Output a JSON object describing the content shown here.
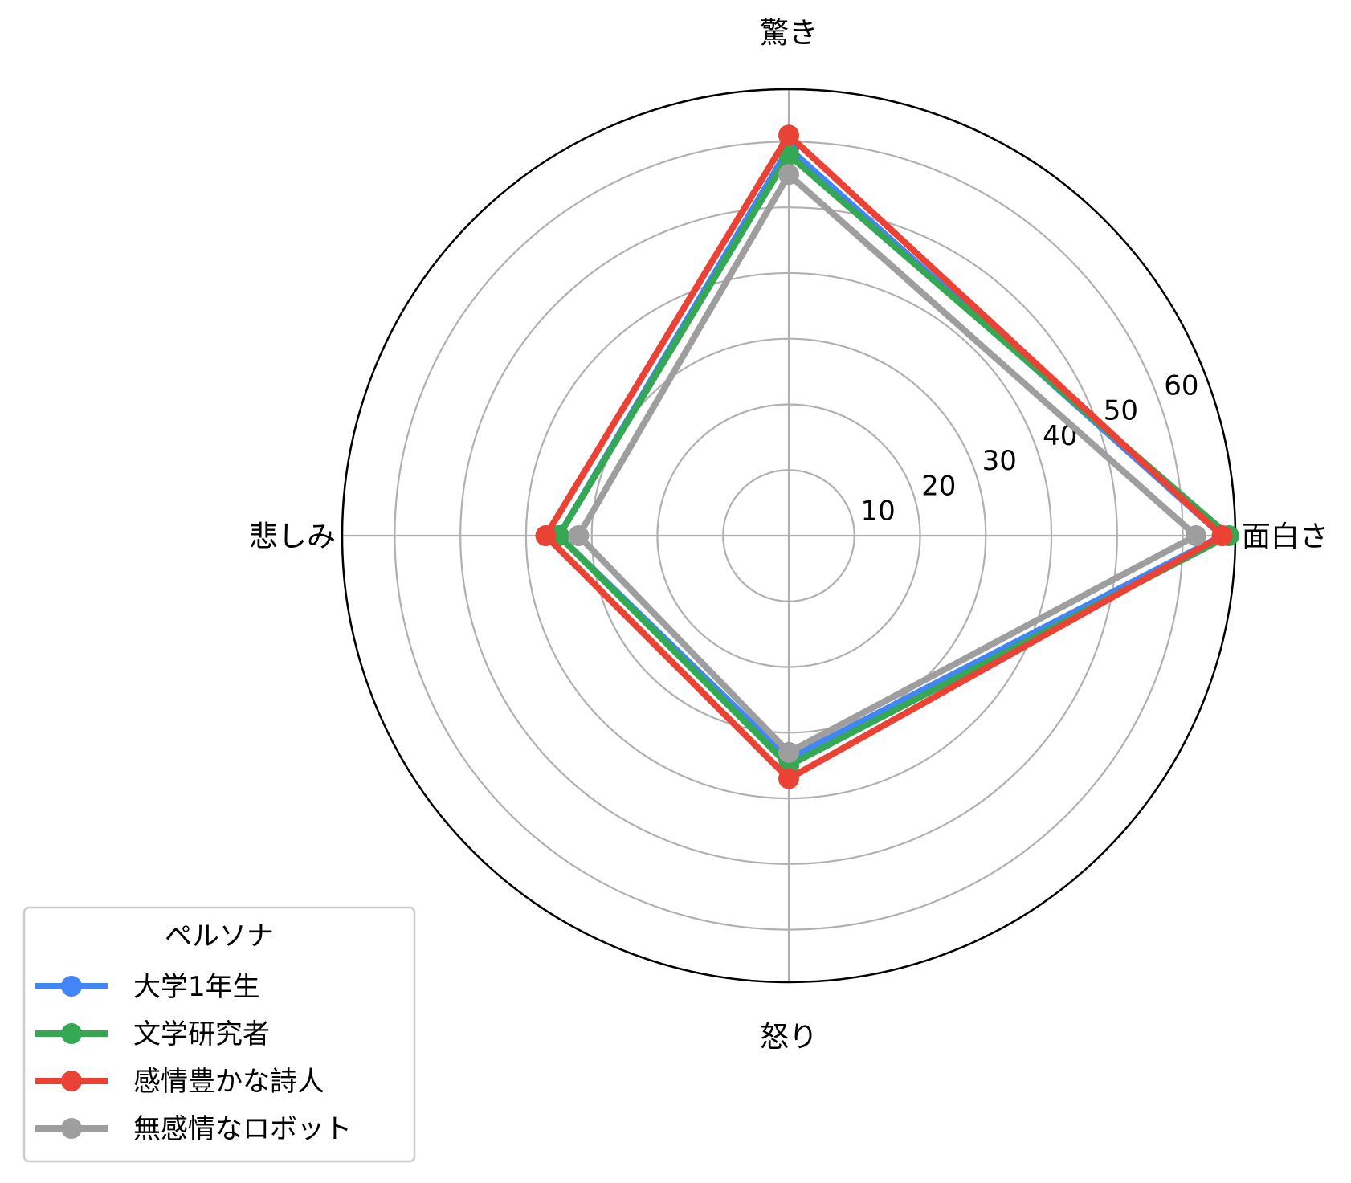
{
  "chart_data": {
    "type": "radar",
    "axes": [
      "面白さ",
      "驚き",
      "悲しみ",
      "怒り"
    ],
    "rmax": 68,
    "rticks": [
      10,
      20,
      30,
      40,
      50,
      60
    ],
    "grid": true,
    "legend": {
      "title": "ペルソナ",
      "placement": "bottom-left"
    },
    "series": [
      {
        "name": "大学1年生",
        "color": "#4285F4",
        "values": [
          66,
          59,
          35,
          34
        ]
      },
      {
        "name": "文学研究者",
        "color": "#34A853",
        "values": [
          67,
          58,
          35,
          35
        ]
      },
      {
        "name": "感情豊かな詩人",
        "color": "#EA4335",
        "values": [
          66,
          61,
          37,
          37
        ]
      },
      {
        "name": "無感情なロボット",
        "color": "#9E9E9E",
        "values": [
          62,
          55,
          32,
          33
        ]
      }
    ]
  }
}
